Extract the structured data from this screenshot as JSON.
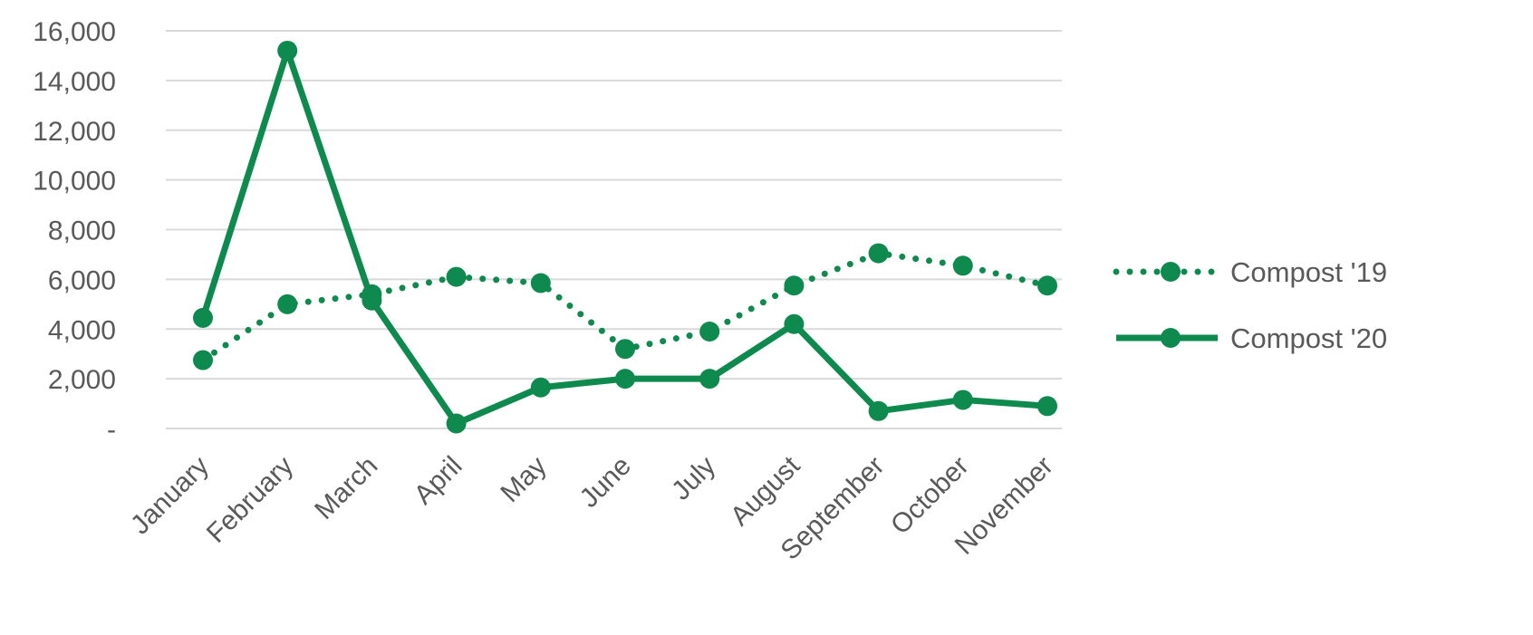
{
  "chart_data": {
    "type": "line",
    "title": "",
    "xlabel": "",
    "ylabel": "",
    "ylim": [
      0,
      16000
    ],
    "yticks": [
      0,
      2000,
      4000,
      6000,
      8000,
      10000,
      12000,
      14000,
      16000
    ],
    "ytick_labels": [
      "-",
      "2,000",
      "4,000",
      "6,000",
      "8,000",
      "10,000",
      "12,000",
      "14,000",
      "16,000"
    ],
    "grid": true,
    "legend_position": "right",
    "categories": [
      "January",
      "February",
      "March",
      "April",
      "May",
      "June",
      "July",
      "August",
      "September",
      "October",
      "November"
    ],
    "series": [
      {
        "name": "Compost '19",
        "style": "dotted",
        "color": "#0e8a4f",
        "values": [
          2750,
          5000,
          5400,
          6100,
          5850,
          3200,
          3900,
          5750,
          7050,
          6550,
          5750
        ]
      },
      {
        "name": "Compost '20",
        "style": "solid",
        "color": "#0e8a4f",
        "values": [
          4450,
          15200,
          5150,
          200,
          1650,
          2000,
          2000,
          4200,
          700,
          1150,
          900
        ]
      }
    ]
  }
}
